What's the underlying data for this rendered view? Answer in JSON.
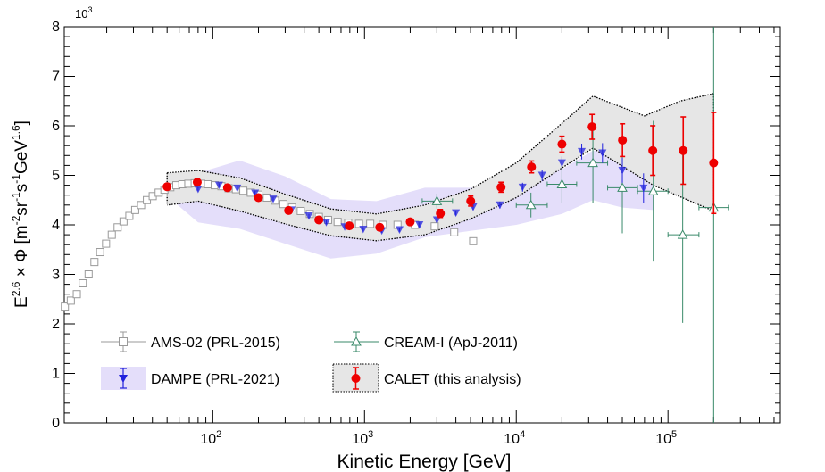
{
  "chart_data": {
    "type": "scatter",
    "xscale": "log",
    "xlim": [
      10.5,
      550000
    ],
    "ylim": [
      0,
      8
    ],
    "ylim_display": "x 10^3",
    "y_multiplier": "10",
    "y_multiplier_exp": "3",
    "xlabel": "Kinetic Energy [GeV]",
    "ylabel": "E^{2.6} × Φ [m^{-2}sr^{-1}s^{-1}GeV^{1.6}]",
    "ylabel_parts": {
      "E": "E",
      "e1": "2.6",
      "times": " × Φ [m",
      "e2": "-2",
      "sr": "sr",
      "e3": "-1",
      "s": "s",
      "e4": "-1",
      "gev": "GeV",
      "e5": "1.6",
      "close": "]"
    },
    "yticks": [
      "0",
      "1",
      "2",
      "3",
      "4",
      "5",
      "6",
      "7",
      "8"
    ],
    "xtick_labels": [
      {
        "value": 100,
        "base": "10",
        "exp": "2"
      },
      {
        "value": 1000,
        "base": "10",
        "exp": "3"
      },
      {
        "value": 10000,
        "base": "10",
        "exp": "4"
      },
      {
        "value": 100000,
        "base": "10",
        "exp": "5"
      }
    ],
    "colors": {
      "ams": "#9a9a9a",
      "cream": "#3a8a6a",
      "dampe_marker": "#2222dd",
      "dampe_band": "#e4defa",
      "calet": "#ee0000",
      "calet_band": "#e6e6e6"
    },
    "series": [
      {
        "name": "AMS-02 (PRL-2015)",
        "marker": "open-square",
        "points": [
          {
            "x": 10.6,
            "y": 2.35
          },
          {
            "x": 11.6,
            "y": 2.47
          },
          {
            "x": 12.7,
            "y": 2.6
          },
          {
            "x": 13.9,
            "y": 2.82
          },
          {
            "x": 15.2,
            "y": 3.0
          },
          {
            "x": 16.6,
            "y": 3.25
          },
          {
            "x": 18.1,
            "y": 3.45
          },
          {
            "x": 19.8,
            "y": 3.62
          },
          {
            "x": 21.6,
            "y": 3.8
          },
          {
            "x": 23.6,
            "y": 3.95
          },
          {
            "x": 25.8,
            "y": 4.07
          },
          {
            "x": 28.2,
            "y": 4.18
          },
          {
            "x": 30.8,
            "y": 4.3
          },
          {
            "x": 33.7,
            "y": 4.4
          },
          {
            "x": 36.8,
            "y": 4.5
          },
          {
            "x": 40.2,
            "y": 4.58
          },
          {
            "x": 44,
            "y": 4.65
          },
          {
            "x": 48,
            "y": 4.71
          },
          {
            "x": 52.5,
            "y": 4.76
          },
          {
            "x": 57.5,
            "y": 4.8
          },
          {
            "x": 63,
            "y": 4.82
          },
          {
            "x": 69,
            "y": 4.83
          },
          {
            "x": 76,
            "y": 4.84
          },
          {
            "x": 84,
            "y": 4.83
          },
          {
            "x": 93,
            "y": 4.82
          },
          {
            "x": 103,
            "y": 4.8
          },
          {
            "x": 114,
            "y": 4.78
          },
          {
            "x": 127,
            "y": 4.74
          },
          {
            "x": 142,
            "y": 4.72
          },
          {
            "x": 159,
            "y": 4.69
          },
          {
            "x": 178,
            "y": 4.65
          },
          {
            "x": 200,
            "y": 4.61
          },
          {
            "x": 227,
            "y": 4.55
          },
          {
            "x": 257,
            "y": 4.49
          },
          {
            "x": 292,
            "y": 4.42
          },
          {
            "x": 333,
            "y": 4.35
          },
          {
            "x": 380,
            "y": 4.28
          },
          {
            "x": 436,
            "y": 4.22
          },
          {
            "x": 500,
            "y": 4.16
          },
          {
            "x": 575,
            "y": 4.1
          },
          {
            "x": 665,
            "y": 4.06
          },
          {
            "x": 780,
            "y": 4.04
          },
          {
            "x": 920,
            "y": 4.02
          },
          {
            "x": 1090,
            "y": 4.02
          },
          {
            "x": 1320,
            "y": 4.0
          },
          {
            "x": 1650,
            "y": 4.0
          },
          {
            "x": 2150,
            "y": 4.0
          },
          {
            "x": 2900,
            "y": 3.97
          },
          {
            "x": 3900,
            "y": 3.85
          },
          {
            "x": 5200,
            "y": 3.67
          }
        ]
      },
      {
        "name": "DAMPE (PRL-2021)",
        "marker": "down-triangle",
        "band": {
          "upper": [
            {
              "x": 50,
              "y": 4.92
            },
            {
              "x": 80,
              "y": 5.05
            },
            {
              "x": 150,
              "y": 5.3
            },
            {
              "x": 300,
              "y": 4.98
            },
            {
              "x": 600,
              "y": 4.52
            },
            {
              "x": 1200,
              "y": 4.48
            },
            {
              "x": 2500,
              "y": 4.75
            },
            {
              "x": 5000,
              "y": 4.75
            },
            {
              "x": 10000,
              "y": 4.82
            },
            {
              "x": 20000,
              "y": 5.12
            },
            {
              "x": 32000,
              "y": 5.5
            },
            {
              "x": 50000,
              "y": 5.4
            },
            {
              "x": 80000,
              "y": 5.25
            }
          ],
          "lower": [
            {
              "x": 80000,
              "y": 4.3
            },
            {
              "x": 50000,
              "y": 4.35
            },
            {
              "x": 32000,
              "y": 4.5
            },
            {
              "x": 20000,
              "y": 4.22
            },
            {
              "x": 10000,
              "y": 4.0
            },
            {
              "x": 5000,
              "y": 3.88
            },
            {
              "x": 2500,
              "y": 3.75
            },
            {
              "x": 1200,
              "y": 3.42
            },
            {
              "x": 600,
              "y": 3.32
            },
            {
              "x": 300,
              "y": 3.62
            },
            {
              "x": 150,
              "y": 3.92
            },
            {
              "x": 80,
              "y": 4.05
            },
            {
              "x": 50,
              "y": 4.58
            }
          ]
        },
        "points": [
          {
            "x": 80,
            "y": 4.72,
            "err": 0.04
          },
          {
            "x": 110,
            "y": 4.8,
            "err": 0.04
          },
          {
            "x": 145,
            "y": 4.74,
            "err": 0.04
          },
          {
            "x": 190,
            "y": 4.64,
            "err": 0.04
          },
          {
            "x": 250,
            "y": 4.52,
            "err": 0.04
          },
          {
            "x": 330,
            "y": 4.3,
            "err": 0.04
          },
          {
            "x": 430,
            "y": 4.18,
            "err": 0.04
          },
          {
            "x": 560,
            "y": 4.05,
            "err": 0.04
          },
          {
            "x": 740,
            "y": 3.96,
            "err": 0.04
          },
          {
            "x": 980,
            "y": 3.91,
            "err": 0.04
          },
          {
            "x": 1300,
            "y": 3.88,
            "err": 0.04
          },
          {
            "x": 1700,
            "y": 3.9,
            "err": 0.04
          },
          {
            "x": 2300,
            "y": 4.0,
            "err": 0.05
          },
          {
            "x": 3000,
            "y": 4.1,
            "err": 0.05
          },
          {
            "x": 4000,
            "y": 4.24,
            "err": 0.05
          },
          {
            "x": 5200,
            "y": 4.36,
            "err": 0.06
          },
          {
            "x": 7800,
            "y": 4.4,
            "err": 0.07
          },
          {
            "x": 11000,
            "y": 4.76,
            "err": 0.09
          },
          {
            "x": 14800,
            "y": 5.0,
            "err": 0.11
          },
          {
            "x": 20000,
            "y": 5.25,
            "err": 0.13
          },
          {
            "x": 27000,
            "y": 5.48,
            "err": 0.16
          },
          {
            "x": 37000,
            "y": 5.45,
            "err": 0.2
          },
          {
            "x": 50000,
            "y": 5.1,
            "err": 0.25
          },
          {
            "x": 69000,
            "y": 4.74,
            "err": 0.3
          }
        ]
      },
      {
        "name": "CREAM-I (ApJ-2011)",
        "marker": "open-triangle",
        "points": [
          {
            "x": 3000,
            "y": 4.48,
            "err": 0.15,
            "xlo": 2400,
            "xhi": 3800
          },
          {
            "x": 12500,
            "y": 4.4,
            "err": 0.25,
            "xlo": 10000,
            "xhi": 16000
          },
          {
            "x": 20000,
            "y": 4.82,
            "err": 0.38,
            "xlo": 16000,
            "xhi": 25000
          },
          {
            "x": 32000,
            "y": 5.25,
            "err": 0.8,
            "xlo": 25000,
            "xhi": 40000
          },
          {
            "x": 50000,
            "y": 4.75,
            "err": 0.92,
            "xlo": 40000,
            "xhi": 63000
          },
          {
            "x": 80000,
            "y": 4.68,
            "err": 1.42,
            "xlo": 63000,
            "xhi": 100000
          },
          {
            "x": 125000,
            "y": 3.8,
            "err": 1.78,
            "xlo": 100000,
            "xhi": 160000
          },
          {
            "x": 200000,
            "y": 4.35,
            "err": 4.5,
            "xlo": 160000,
            "xhi": 250000
          }
        ]
      },
      {
        "name": "CALET (this analysis)",
        "marker": "filled-circle",
        "band": {
          "upper": [
            {
              "x": 50,
              "y": 5.05
            },
            {
              "x": 80,
              "y": 5.1
            },
            {
              "x": 150,
              "y": 4.95
            },
            {
              "x": 300,
              "y": 4.62
            },
            {
              "x": 600,
              "y": 4.32
            },
            {
              "x": 1200,
              "y": 4.22
            },
            {
              "x": 2500,
              "y": 4.4
            },
            {
              "x": 5000,
              "y": 4.72
            },
            {
              "x": 10000,
              "y": 5.25
            },
            {
              "x": 20000,
              "y": 6.05
            },
            {
              "x": 32000,
              "y": 6.6
            },
            {
              "x": 70000,
              "y": 6.2
            },
            {
              "x": 120000,
              "y": 6.5
            },
            {
              "x": 200000,
              "y": 6.65
            }
          ],
          "lower": [
            {
              "x": 200000,
              "y": 4.28
            },
            {
              "x": 80000,
              "y": 4.8
            },
            {
              "x": 32000,
              "y": 5.55
            },
            {
              "x": 20000,
              "y": 5.15
            },
            {
              "x": 10000,
              "y": 4.55
            },
            {
              "x": 5000,
              "y": 4.12
            },
            {
              "x": 2500,
              "y": 3.8
            },
            {
              "x": 1200,
              "y": 3.68
            },
            {
              "x": 600,
              "y": 3.78
            },
            {
              "x": 300,
              "y": 4.02
            },
            {
              "x": 150,
              "y": 4.28
            },
            {
              "x": 80,
              "y": 4.48
            },
            {
              "x": 50,
              "y": 4.4
            }
          ]
        },
        "points": [
          {
            "x": 50,
            "y": 4.77,
            "err": 0.06
          },
          {
            "x": 79,
            "y": 4.86,
            "err": 0.06
          },
          {
            "x": 125,
            "y": 4.75,
            "err": 0.06
          },
          {
            "x": 200,
            "y": 4.55,
            "err": 0.06
          },
          {
            "x": 316,
            "y": 4.29,
            "err": 0.06
          },
          {
            "x": 500,
            "y": 4.1,
            "err": 0.06
          },
          {
            "x": 794,
            "y": 3.98,
            "err": 0.06
          },
          {
            "x": 1260,
            "y": 3.95,
            "err": 0.06
          },
          {
            "x": 2000,
            "y": 4.06,
            "err": 0.06
          },
          {
            "x": 3160,
            "y": 4.23,
            "err": 0.08
          },
          {
            "x": 5010,
            "y": 4.48,
            "err": 0.1
          },
          {
            "x": 7940,
            "y": 4.76,
            "err": 0.1
          },
          {
            "x": 12600,
            "y": 5.17,
            "err": 0.12
          },
          {
            "x": 20000,
            "y": 5.63,
            "err": 0.16
          },
          {
            "x": 31600,
            "y": 5.98,
            "err": 0.25
          },
          {
            "x": 50100,
            "y": 5.71,
            "err": 0.33
          },
          {
            "x": 79400,
            "y": 5.5,
            "err": 0.5
          },
          {
            "x": 126000,
            "y": 5.5,
            "err": 0.68
          },
          {
            "x": 200000,
            "y": 5.25,
            "err": 1.02
          }
        ]
      }
    ],
    "legend": [
      {
        "label": "AMS-02 (PRL-2015)",
        "marker": "open-square"
      },
      {
        "label": "CREAM-I (ApJ-2011)",
        "marker": "open-triangle"
      },
      {
        "label": "DAMPE (PRL-2021)",
        "marker": "down-triangle"
      },
      {
        "label": "CALET (this analysis)",
        "marker": "filled-circle"
      }
    ]
  }
}
